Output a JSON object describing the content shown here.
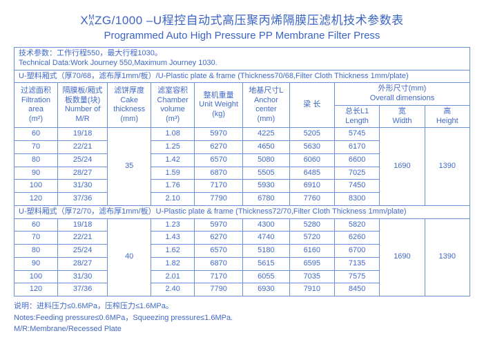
{
  "title_cn_prefix": "X",
  "title_cn_supsub_top": "M",
  "title_cn_supsub_bot": "A",
  "title_cn_rest": "ZG/1000 –U程控自动式高压聚丙烯隔膜压滤机技术参数表",
  "title_en": "Programmed Auto High Pressure PP Membrane Filter Press",
  "tech_data_cn": "技术参数：工作行程550，最大行程1030。",
  "tech_data_en": "Technical Data:Work Journey 550,Maximum Journey 1030.",
  "section1": "U-塑料厢式（厚70/68，滤布厚1mm/板）/U-Plastic plate & frame (Thickness70/68,Filter Cloth Thickness 1mm/plate)",
  "section2": "U-塑料厢式（厚72/70，滤布厚1mm/板）U-Plastic plate & frame (Thickness72/70,Filter Cloth Thickness 1mm/plate)",
  "headers": {
    "filtration_cn": "过滤面积",
    "filtration_en": "Filtration area",
    "filtration_unit": "(m²)",
    "mr_cn": "隔膜板/厢式板数量(块)",
    "mr_en": "Number of M/R",
    "cake_cn": "滤饼厚度",
    "cake_en": "Cake thickness",
    "cake_unit": "(mm)",
    "chamber_cn": "滤室容积",
    "chamber_en": "Chamber volume",
    "chamber_unit": "(m³)",
    "weight_cn": "整机重量",
    "weight_en": "Unit Weight",
    "weight_unit": "(kg)",
    "anchor_cn": "地基尺寸L",
    "anchor_en": "Anchor center",
    "anchor_unit": "(mm)",
    "beam": "梁 长",
    "overall_cn": "外形尺寸(mm)",
    "overall_en": "Overall dimensions",
    "length_cn": "总长L1",
    "length_en": "Length",
    "width_cn": "宽",
    "width_en": "Width",
    "height_cn": "高",
    "height_en": "Height"
  },
  "block1": {
    "cake": "35",
    "width": "1690",
    "height": "1390",
    "rows": [
      {
        "area": "60",
        "mr": "19/18",
        "vol": "1.08",
        "wt": "5970",
        "anc": "4225",
        "beam": "5205",
        "len": "5745"
      },
      {
        "area": "70",
        "mr": "22/21",
        "vol": "1.25",
        "wt": "6270",
        "anc": "4650",
        "beam": "5630",
        "len": "6170"
      },
      {
        "area": "80",
        "mr": "25/24",
        "vol": "1.42",
        "wt": "6570",
        "anc": "5080",
        "beam": "6060",
        "len": "6600"
      },
      {
        "area": "90",
        "mr": "28/27",
        "vol": "1.59",
        "wt": "6870",
        "anc": "5505",
        "beam": "6485",
        "len": "7025"
      },
      {
        "area": "100",
        "mr": "31/30",
        "vol": "1.76",
        "wt": "7170",
        "anc": "5930",
        "beam": "6910",
        "len": "7450"
      },
      {
        "area": "120",
        "mr": "37/36",
        "vol": "2.10",
        "wt": "7790",
        "anc": "6780",
        "beam": "7760",
        "len": "8300"
      }
    ]
  },
  "block2": {
    "cake": "40",
    "width": "1690",
    "height": "1390",
    "rows": [
      {
        "area": "60",
        "mr": "19/18",
        "vol": "1.23",
        "wt": "5970",
        "anc": "4300",
        "beam": "5280",
        "len": "5820"
      },
      {
        "area": "70",
        "mr": "22/21",
        "vol": "1.43",
        "wt": "6270",
        "anc": "4740",
        "beam": "5720",
        "len": "6260"
      },
      {
        "area": "80",
        "mr": "25/24",
        "vol": "1.62",
        "wt": "6570",
        "anc": "5180",
        "beam": "6160",
        "len": "6700"
      },
      {
        "area": "90",
        "mr": "28/27",
        "vol": "1.82",
        "wt": "6870",
        "anc": "5615",
        "beam": "6595",
        "len": "7135"
      },
      {
        "area": "100",
        "mr": "31/30",
        "vol": "2.01",
        "wt": "7170",
        "anc": "6055",
        "beam": "7035",
        "len": "7575"
      },
      {
        "area": "120",
        "mr": "37/36",
        "vol": "2.40",
        "wt": "7790",
        "anc": "6930",
        "beam": "7910",
        "len": "8450"
      }
    ]
  },
  "notes": {
    "n1": "说明：进料压力≤0.6MPa，压榨压力≤1.6MPa。",
    "n2": "Notes:Feeding pressure≤0.6MPa，Squeezing pressure≤1.6MPa.",
    "n3": "M/R:Membrane/Recessed Plate"
  },
  "col_widths": [
    "54",
    "62",
    "54",
    "54",
    "60",
    "58",
    "56",
    "56",
    "56",
    "56"
  ]
}
